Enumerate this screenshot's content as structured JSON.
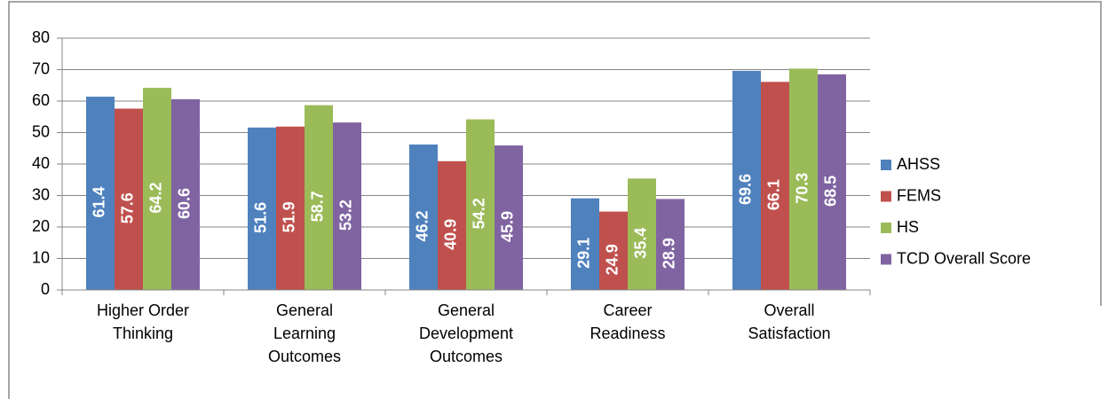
{
  "chart_data": {
    "type": "bar",
    "categories": [
      "Higher Order Thinking",
      "General Learning Outcomes",
      "General Development Outcomes",
      "Career Readiness",
      "Overall Satisfaction"
    ],
    "series": [
      {
        "name": "AHSS",
        "color": "#4f81bd",
        "values": [
          61.4,
          51.6,
          46.2,
          29.1,
          69.6
        ]
      },
      {
        "name": "FEMS",
        "color": "#c0504d",
        "values": [
          57.6,
          51.9,
          40.9,
          24.9,
          66.1
        ]
      },
      {
        "name": "HS",
        "color": "#9bbb59",
        "values": [
          64.2,
          58.7,
          54.2,
          35.4,
          70.3
        ]
      },
      {
        "name": "TCD Overall Score",
        "color": "#8064a2",
        "values": [
          60.6,
          53.2,
          45.9,
          28.9,
          68.5
        ]
      }
    ],
    "ylim": [
      0,
      80
    ],
    "yticks": [
      0,
      10,
      20,
      30,
      40,
      50,
      60,
      70,
      80
    ],
    "grid": true,
    "legend": "right"
  }
}
